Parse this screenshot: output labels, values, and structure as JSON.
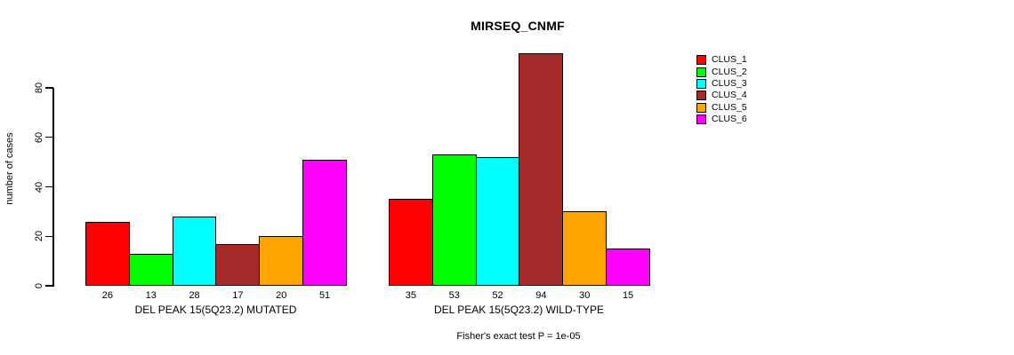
{
  "chart_data": {
    "type": "bar",
    "title": "MIRSEQ_CNMF",
    "ylabel": "number of cases",
    "xlabel": "",
    "ylim": [
      0,
      80
    ],
    "yticks": [
      0,
      20,
      40,
      60,
      80
    ],
    "grid": false,
    "legend_position": "right",
    "categories": [
      "DEL PEAK 15(5Q23.2) MUTATED",
      "DEL PEAK 15(5Q23.2) WILD-TYPE"
    ],
    "series": [
      {
        "name": "CLUS_1",
        "color": "#FF0000",
        "values": [
          26,
          35
        ]
      },
      {
        "name": "CLUS_2",
        "color": "#00FF00",
        "values": [
          13,
          53
        ]
      },
      {
        "name": "CLUS_3",
        "color": "#00FFFF",
        "values": [
          28,
          52
        ]
      },
      {
        "name": "CLUS_4",
        "color": "#A52A2A",
        "values": [
          17,
          94
        ]
      },
      {
        "name": "CLUS_5",
        "color": "#FFA500",
        "values": [
          20,
          30
        ]
      },
      {
        "name": "CLUS_6",
        "color": "#FF00FF",
        "values": [
          51,
          15
        ]
      }
    ],
    "bar_value_labels_shown": true,
    "annotation": "Fisher's exact test P = 1e-05",
    "colors": {
      "background": "#FFFFFF",
      "axis": "#000000",
      "bar_border": "#000000",
      "text": "#000000"
    }
  }
}
